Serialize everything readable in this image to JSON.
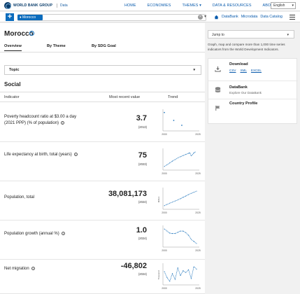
{
  "brand": {
    "name": "WORLD BANK GROUP",
    "section": "Data"
  },
  "nav": {
    "items": [
      "HOME",
      "ECONOMIES",
      "THEMES ▾",
      "DATA & RESOURCES",
      "ABOUT"
    ],
    "language": "English"
  },
  "search": {
    "country_chip": "♦ Morocco"
  },
  "secondary_links": [
    "DataBank",
    "Microdata",
    "Data Catalog"
  ],
  "page": {
    "title": "Morocco",
    "tabs": [
      "Overview",
      "By Theme",
      "By SDG Goal"
    ],
    "topic_select": "Topic",
    "section": "Social",
    "columns": {
      "indicator": "Indicator",
      "recent": "Most recent value",
      "trend": "Trend"
    }
  },
  "indicators": [
    {
      "label": "Poverty headcount ratio at $3.00 a day (2021 PPP) (% of population)",
      "value": "3.7",
      "year": "(2013)",
      "axis_start": "2000",
      "axis_end": "2025",
      "y_unit": ""
    },
    {
      "label": "Life expectancy at birth, total (years)",
      "value": "75",
      "year": "(2023)",
      "axis_start": "2000",
      "axis_end": "2025",
      "y_unit": ""
    },
    {
      "label": "Population, total",
      "value": "38,081,173",
      "year": "(2024)",
      "axis_start": "2000",
      "axis_end": "2025",
      "y_unit": "Million"
    },
    {
      "label": "Population growth (annual %)",
      "value": "1.0",
      "year": "(2024)",
      "axis_start": "2000",
      "axis_end": "2025",
      "y_unit": ""
    },
    {
      "label": "Net migration",
      "value": "-46,802",
      "year": "(2024)",
      "axis_start": "2000",
      "axis_end": "2025",
      "y_unit": "Thousand"
    }
  ],
  "chart_data": [
    {
      "type": "scatter",
      "x": [
        2000,
        2007,
        2013
      ],
      "values": [
        15,
        8,
        3.7
      ]
    },
    {
      "type": "line",
      "x": [
        2000,
        2002,
        2004,
        2006,
        2008,
        2010,
        2012,
        2014,
        2016,
        2018,
        2019,
        2020,
        2021,
        2022,
        2023
      ],
      "values": [
        68.5,
        69.3,
        70.1,
        70.9,
        71.6,
        72.3,
        72.9,
        73.4,
        73.9,
        74.4,
        74.6,
        73.3,
        73.8,
        74.6,
        75
      ]
    },
    {
      "type": "line",
      "x": [
        2000,
        2002,
        2004,
        2006,
        2008,
        2010,
        2012,
        2014,
        2016,
        2018,
        2020,
        2022,
        2024
      ],
      "values": [
        28.8,
        29.6,
        30.4,
        31.1,
        31.8,
        32.5,
        33.3,
        34.2,
        35.0,
        35.9,
        36.7,
        37.4,
        38.1
      ]
    },
    {
      "type": "line",
      "x": [
        2000,
        2002,
        2004,
        2006,
        2008,
        2010,
        2012,
        2014,
        2016,
        2018,
        2020,
        2022,
        2024
      ],
      "values": [
        1.35,
        1.3,
        1.25,
        1.24,
        1.24,
        1.27,
        1.3,
        1.3,
        1.26,
        1.2,
        1.1,
        1.05,
        1.0
      ]
    },
    {
      "type": "line",
      "x": [
        2000,
        2002,
        2004,
        2006,
        2008,
        2010,
        2012,
        2014,
        2016,
        2018,
        2020,
        2022,
        2024
      ],
      "values": [
        -60,
        -90,
        -110,
        -70,
        -100,
        -40,
        -80,
        -55,
        -65,
        -50,
        -95,
        -35,
        -47
      ]
    }
  ],
  "right_panel": {
    "jump_to": "Jump to",
    "description": "Graph, map and compare more than 1,000 time series indicators from the World Development Indicators.",
    "download_title": "Download",
    "download_links": [
      "CSV",
      "XML",
      "EXCEL"
    ],
    "databank_title": "DataBank",
    "databank_sub": "Explore Our DataBank",
    "profile_title": "Country Profile"
  }
}
